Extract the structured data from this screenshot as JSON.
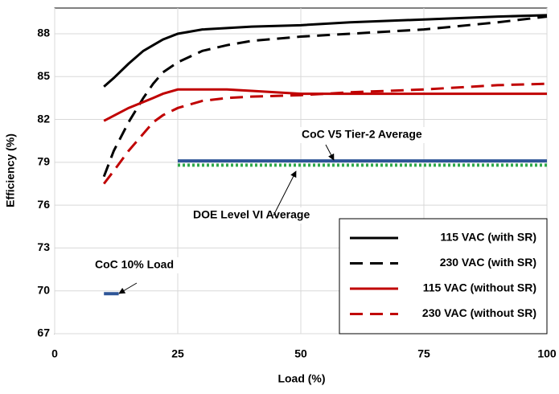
{
  "chart_data": {
    "type": "line",
    "xlabel": "Load (%)",
    "ylabel": "Efficiency (%)",
    "xlim": [
      0,
      100
    ],
    "xticks": [
      0,
      25,
      50,
      75,
      100
    ],
    "ylim": [
      67,
      89.8
    ],
    "yticks": [
      67,
      70,
      73,
      76,
      79,
      82,
      85,
      88
    ],
    "grid": true,
    "legend": "lower right",
    "series": [
      {
        "name": "115 VAC (with SR)",
        "color": "#000000",
        "style": "solid",
        "x": [
          10,
          12,
          15,
          18,
          20,
          22,
          25,
          30,
          40,
          50,
          60,
          75,
          90,
          100
        ],
        "values": [
          84.3,
          84.9,
          85.9,
          86.8,
          87.2,
          87.6,
          88.0,
          88.3,
          88.5,
          88.6,
          88.8,
          89.0,
          89.2,
          89.3
        ]
      },
      {
        "name": "230 VAC (with SR)",
        "color": "#000000",
        "style": "dashed",
        "x": [
          10,
          12,
          15,
          18,
          20,
          22,
          25,
          30,
          35,
          40,
          50,
          60,
          75,
          90,
          100
        ],
        "values": [
          78.0,
          79.8,
          81.8,
          83.5,
          84.5,
          85.3,
          86.0,
          86.8,
          87.2,
          87.5,
          87.8,
          88.0,
          88.3,
          88.8,
          89.2
        ]
      },
      {
        "name": "115 VAC (without SR)",
        "color": "#c00000",
        "style": "solid",
        "x": [
          10,
          15,
          20,
          22,
          25,
          35,
          40,
          50,
          75,
          100
        ],
        "values": [
          81.9,
          82.8,
          83.5,
          83.8,
          84.1,
          84.1,
          84.0,
          83.8,
          83.8,
          83.8
        ]
      },
      {
        "name": "230 VAC (without SR)",
        "color": "#c00000",
        "style": "dashed",
        "x": [
          10,
          12,
          15,
          18,
          20,
          22,
          25,
          30,
          35,
          40,
          50,
          60,
          75,
          90,
          100
        ],
        "values": [
          77.5,
          78.4,
          79.8,
          81.0,
          81.8,
          82.3,
          82.8,
          83.3,
          83.5,
          83.6,
          83.7,
          83.9,
          84.1,
          84.4,
          84.5
        ]
      }
    ],
    "reference_lines": [
      {
        "label": "CoC V5 Tier-2 Average",
        "value": 79.1,
        "x": [
          25,
          100
        ],
        "color": "#2e5597",
        "style": "solid"
      },
      {
        "label": "DOE Level VI Average",
        "value": 78.8,
        "x": [
          25,
          100
        ],
        "color": "#2ea84a",
        "style": "dotted"
      },
      {
        "label": "CoC 10% Load",
        "value": 69.8,
        "x": [
          10,
          13
        ],
        "color": "#2e5597",
        "style": "solid"
      }
    ]
  }
}
